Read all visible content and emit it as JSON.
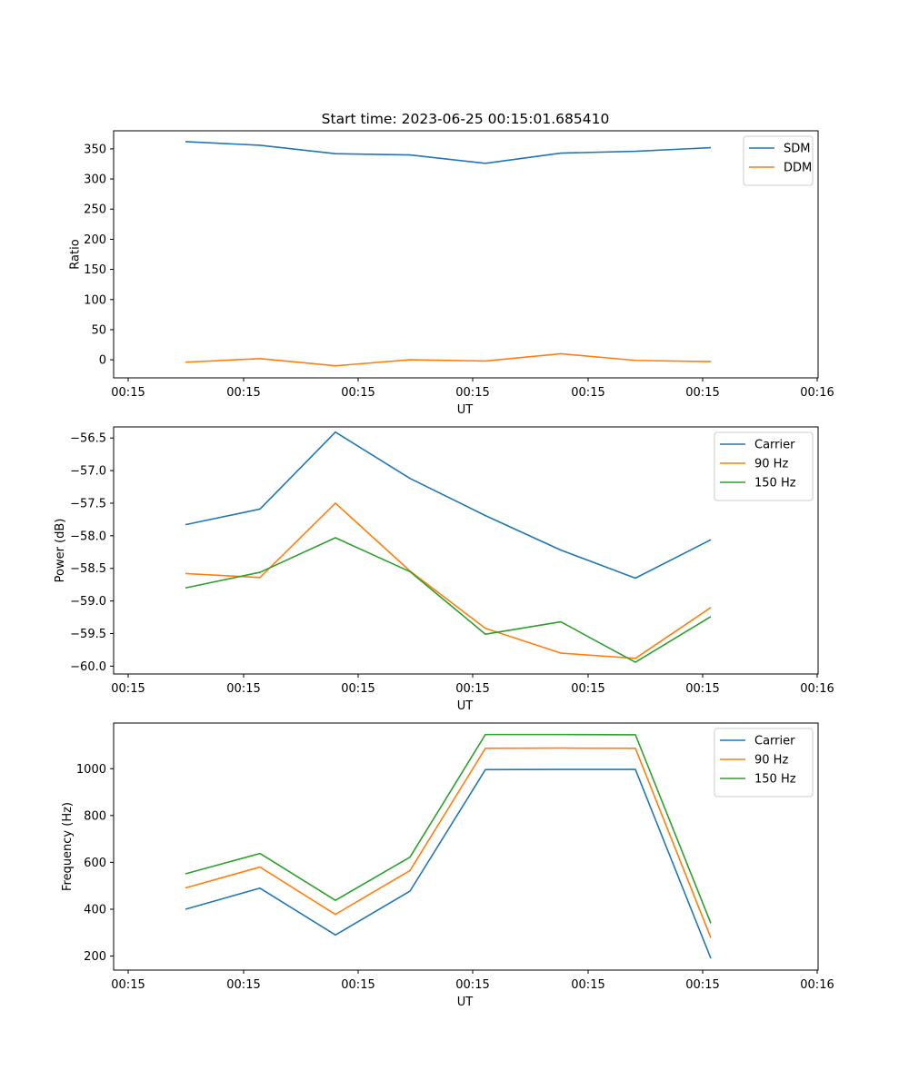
{
  "title": "Start time: 2023-06-25 00:15:01.685410",
  "colors": {
    "blue": "#1f77b4",
    "orange": "#ff7f0e",
    "green": "#2ca02c"
  },
  "chart_data": [
    {
      "type": "line",
      "title": "Start time: 2023-06-25 00:15:01.685410",
      "xlabel": "UT",
      "ylabel": "Ratio",
      "x_tick_labels": [
        "00:15",
        "00:15",
        "00:15",
        "00:15",
        "00:15",
        "00:15",
        "00:15",
        "00:16"
      ],
      "ylim": [
        -30,
        380
      ],
      "y_ticks": [
        0,
        50,
        100,
        150,
        200,
        250,
        300,
        350
      ],
      "y_tick_labels": [
        "0",
        "50",
        "100",
        "150",
        "200",
        "250",
        "300",
        "350"
      ],
      "legend_position": "top-right",
      "grid": false,
      "series": [
        {
          "name": "SDM",
          "color": "#1f77b4",
          "values": [
            362,
            356,
            342,
            340,
            326,
            343,
            346,
            352
          ]
        },
        {
          "name": "DDM",
          "color": "#ff7f0e",
          "values": [
            -4,
            2,
            -10,
            0,
            -2,
            10,
            -1,
            -3
          ]
        }
      ]
    },
    {
      "type": "line",
      "xlabel": "UT",
      "ylabel": "Power (dB)",
      "x_tick_labels": [
        "00:15",
        "00:15",
        "00:15",
        "00:15",
        "00:15",
        "00:15",
        "00:15",
        "00:16"
      ],
      "ylim": [
        -60.12,
        -56.33
      ],
      "y_ticks": [
        -60.0,
        -59.5,
        -59.0,
        -58.5,
        -58.0,
        -57.5,
        -57.0,
        -56.5
      ],
      "y_tick_labels": [
        "−60.0",
        "−59.5",
        "−59.0",
        "−58.5",
        "−58.0",
        "−57.5",
        "−57.0",
        "−56.5"
      ],
      "legend_position": "top-right",
      "grid": false,
      "series": [
        {
          "name": "Carrier",
          "color": "#1f77b4",
          "values": [
            -57.83,
            -57.59,
            -56.41,
            -57.12,
            -57.69,
            -58.22,
            -58.65,
            -58.06
          ]
        },
        {
          "name": "90 Hz",
          "color": "#ff7f0e",
          "values": [
            -58.58,
            -58.64,
            -57.5,
            -58.54,
            -59.42,
            -59.8,
            -59.88,
            -59.1
          ]
        },
        {
          "name": "150 Hz",
          "color": "#2ca02c",
          "values": [
            -58.8,
            -58.56,
            -58.03,
            -58.55,
            -59.51,
            -59.32,
            -59.94,
            -59.24
          ]
        }
      ]
    },
    {
      "type": "line",
      "xlabel": "UT",
      "ylabel": "Frequency (Hz)",
      "x_tick_labels": [
        "00:15",
        "00:15",
        "00:15",
        "00:15",
        "00:15",
        "00:15",
        "00:15",
        "00:16"
      ],
      "ylim": [
        140,
        1195
      ],
      "y_ticks": [
        200,
        400,
        600,
        800,
        1000
      ],
      "y_tick_labels": [
        "200",
        "400",
        "600",
        "800",
        "1000"
      ],
      "legend_position": "top-right",
      "grid": false,
      "series": [
        {
          "name": "Carrier",
          "color": "#1f77b4",
          "values": [
            400,
            490,
            290,
            477,
            996,
            997,
            997,
            190
          ]
        },
        {
          "name": "90 Hz",
          "color": "#ff7f0e",
          "values": [
            491,
            580,
            378,
            565,
            1087,
            1088,
            1087,
            278
          ]
        },
        {
          "name": "150 Hz",
          "color": "#2ca02c",
          "values": [
            551,
            638,
            438,
            622,
            1146,
            1146,
            1145,
            340
          ]
        }
      ]
    }
  ]
}
